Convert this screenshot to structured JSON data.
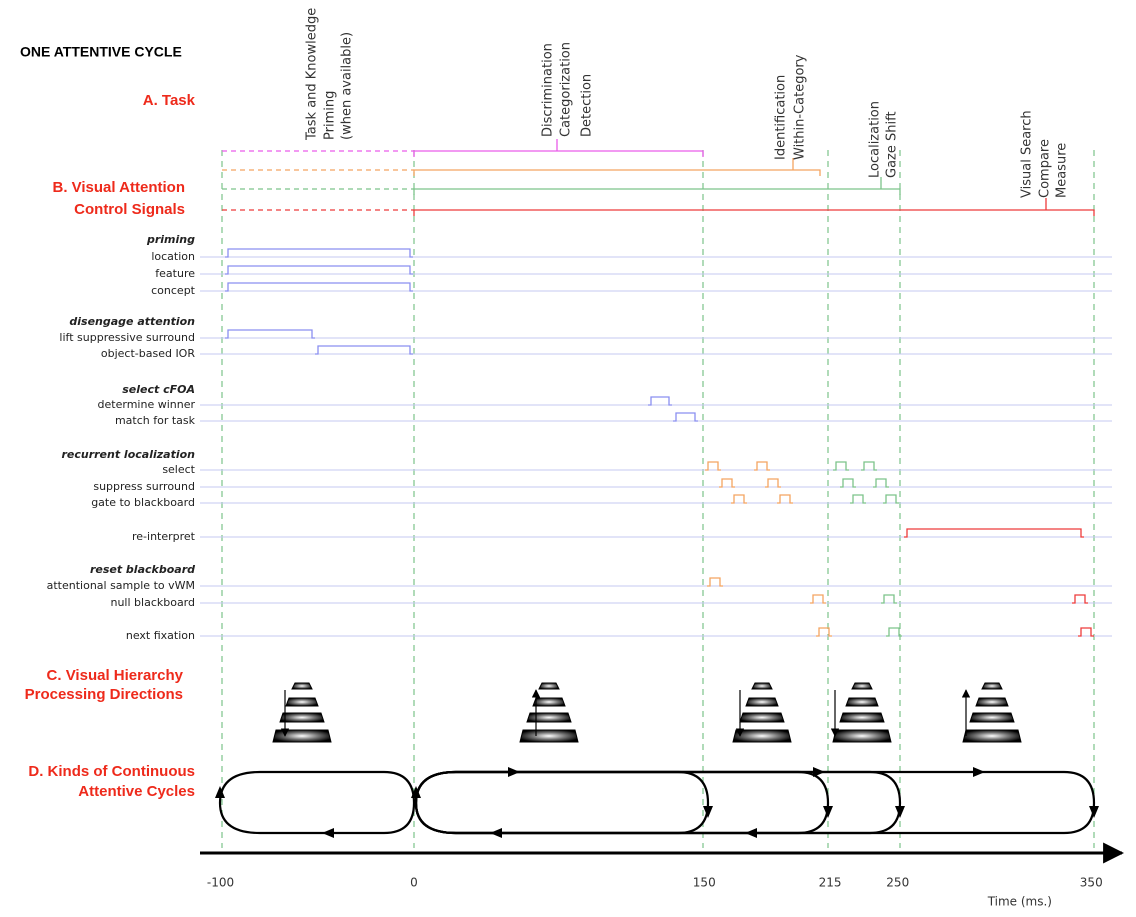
{
  "title": "ONE ATTENTIVE CYCLE",
  "sections": {
    "task": "A. Task",
    "control": [
      "B. Visual Attention",
      "Control Signals"
    ],
    "hierarchy": [
      "C. Visual  Hierarchy",
      "Processing Directions"
    ],
    "cycles": [
      "D. Kinds of Continuous",
      "Attentive Cycles"
    ]
  },
  "tasks": [
    [
      "Task and Knowledge",
      "Priming",
      "(when available)"
    ],
    [
      "Discrimination",
      "Categorization",
      "Detection"
    ],
    [
      "Identification",
      "Within-Category"
    ],
    [
      "Localization",
      "Gaze Shift"
    ],
    [
      "Visual Search",
      "Compare",
      "Measure"
    ]
  ],
  "signals": [
    {
      "group": "priming",
      "rows": [
        "location",
        "feature",
        "concept"
      ]
    },
    {
      "group": "disengage attention",
      "rows": [
        "lift suppressive surround",
        "object-based IOR"
      ]
    },
    {
      "group": "select cFOA",
      "rows": [
        "determine winner",
        "match for task"
      ]
    },
    {
      "group": "recurrent localization",
      "rows": [
        "select",
        "suppress surround",
        "gate to blackboard"
      ]
    },
    {
      "rows": [
        "re-interpret"
      ]
    },
    {
      "group": "reset blackboard",
      "rows": [
        "attentional sample to vWM",
        "null blackboard"
      ]
    },
    {
      "rows": [
        "next fixation"
      ]
    }
  ],
  "time_axis": {
    "ticks": [
      -100,
      0,
      150,
      215,
      250,
      350
    ],
    "label": "Time (ms.)"
  }
}
